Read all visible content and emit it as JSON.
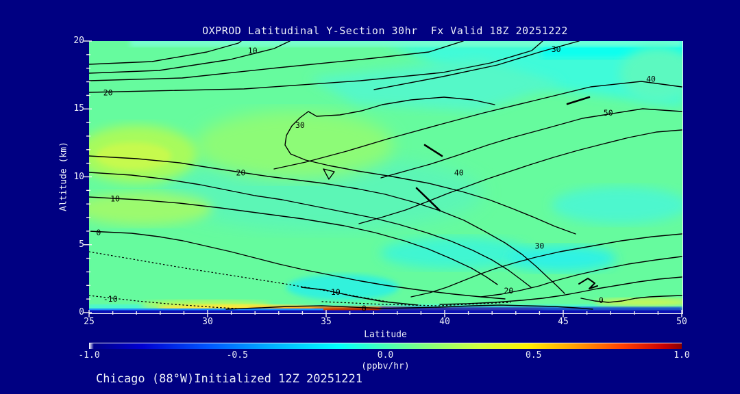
{
  "header": {
    "title": "OXPROD Latitudinal Y-Section 30hr  Fx Valid 18Z 20251222"
  },
  "footer": {
    "caption": "Chicago (88°W)Initialized 12Z 20251221"
  },
  "chart_data": {
    "type": "heatmap",
    "subtype": "filled-contour-cross-section",
    "title": "OXPROD Latitudinal Y-Section 30hr  Fx Valid 18Z 20251222",
    "xlabel": "Latitude",
    "ylabel": "Altitude (km)",
    "xlim": [
      25,
      50
    ],
    "ylim": [
      0,
      20
    ],
    "x_ticks": [
      25,
      30,
      35,
      40,
      45,
      50
    ],
    "x_minor_step": 1,
    "y_ticks": [
      0,
      5,
      10,
      15,
      20
    ],
    "y_minor_step": 1,
    "grid": false,
    "contour_line_color": "#000000",
    "negative_contours_dotted": true,
    "contour_labels": [
      {
        "text": "10",
        "lat": 31.9,
        "km": 19.3
      },
      {
        "text": "20",
        "lat": 25.8,
        "km": 16.2
      },
      {
        "text": "30",
        "lat": 44.7,
        "km": 19.4
      },
      {
        "text": "40",
        "lat": 48.7,
        "km": 17.2
      },
      {
        "text": "50",
        "lat": 46.9,
        "km": 14.7
      },
      {
        "text": "30",
        "lat": 33.9,
        "km": 13.8
      },
      {
        "text": "40",
        "lat": 40.6,
        "km": 10.3
      },
      {
        "text": "20",
        "lat": 31.4,
        "km": 10.3
      },
      {
        "text": "10",
        "lat": 26.1,
        "km": 8.4
      },
      {
        "text": "0",
        "lat": 25.4,
        "km": 5.9
      },
      {
        "text": "30",
        "lat": 44.0,
        "km": 4.9
      },
      {
        "text": "20",
        "lat": 42.7,
        "km": 1.6
      },
      {
        "text": "10",
        "lat": 35.4,
        "km": 1.5
      },
      {
        "text": "0",
        "lat": 36.6,
        "km": 0.3
      },
      {
        "text": "0",
        "lat": 46.6,
        "km": 0.9
      },
      {
        "text": "-10",
        "lat": 25.9,
        "km": 1.0
      }
    ],
    "field_summary": {
      "units": "ppbv/hr-equivalent contour levels",
      "low_region": "negative values (-10 to 0) near surface at left (lat 25-35, 0-3 km)",
      "high_region": "maximum labeled contour 50 at lat 45-50, 12-15 km",
      "surface_hotspot": "strong positive (red/orange, ~+1 ppbv/hr) shallow layer lat 29-38 near 0 km",
      "surface_negative": "strong negative (dark blue, ~-1 ppbv/hr) lowest model layer across all latitudes"
    },
    "colorbar": {
      "min": -1.0,
      "max": 1.0,
      "ticks": [
        "-1.0",
        "-0.5",
        "0.0",
        "0.5",
        "1.0"
      ],
      "units": "(ppbv/hr)",
      "stops": [
        {
          "pos": 0.0,
          "color": "#FFFFFF"
        },
        {
          "pos": 0.008,
          "color": "#00008B"
        },
        {
          "pos": 0.09,
          "color": "#0000D2"
        },
        {
          "pos": 0.2,
          "color": "#0055FF"
        },
        {
          "pos": 0.3,
          "color": "#00AAFF"
        },
        {
          "pos": 0.42,
          "color": "#00FFFF"
        },
        {
          "pos": 0.5,
          "color": "#47FFB7"
        },
        {
          "pos": 0.58,
          "color": "#8CFF74"
        },
        {
          "pos": 0.66,
          "color": "#D2FF3C"
        },
        {
          "pos": 0.74,
          "color": "#FFF000"
        },
        {
          "pos": 0.82,
          "color": "#FFA000"
        },
        {
          "pos": 0.9,
          "color": "#FF4000"
        },
        {
          "pos": 0.97,
          "color": "#C80000"
        },
        {
          "pos": 1.0,
          "color": "#8B0000"
        }
      ]
    },
    "palette": {
      "background": "#000082",
      "base_fill": "#66FB9E",
      "cyan_fill": "#3FFBD9",
      "aqua_fill": "#0CFFEF",
      "yellow_green_fill": "#C6FA4E",
      "surface_yellow": "#FFE93C",
      "surface_orange": "#FF9A1E",
      "surface_dark_red": "#AE1200",
      "surface_navy": "#0A0FB4",
      "axis_text": "#ECEFF7"
    }
  }
}
